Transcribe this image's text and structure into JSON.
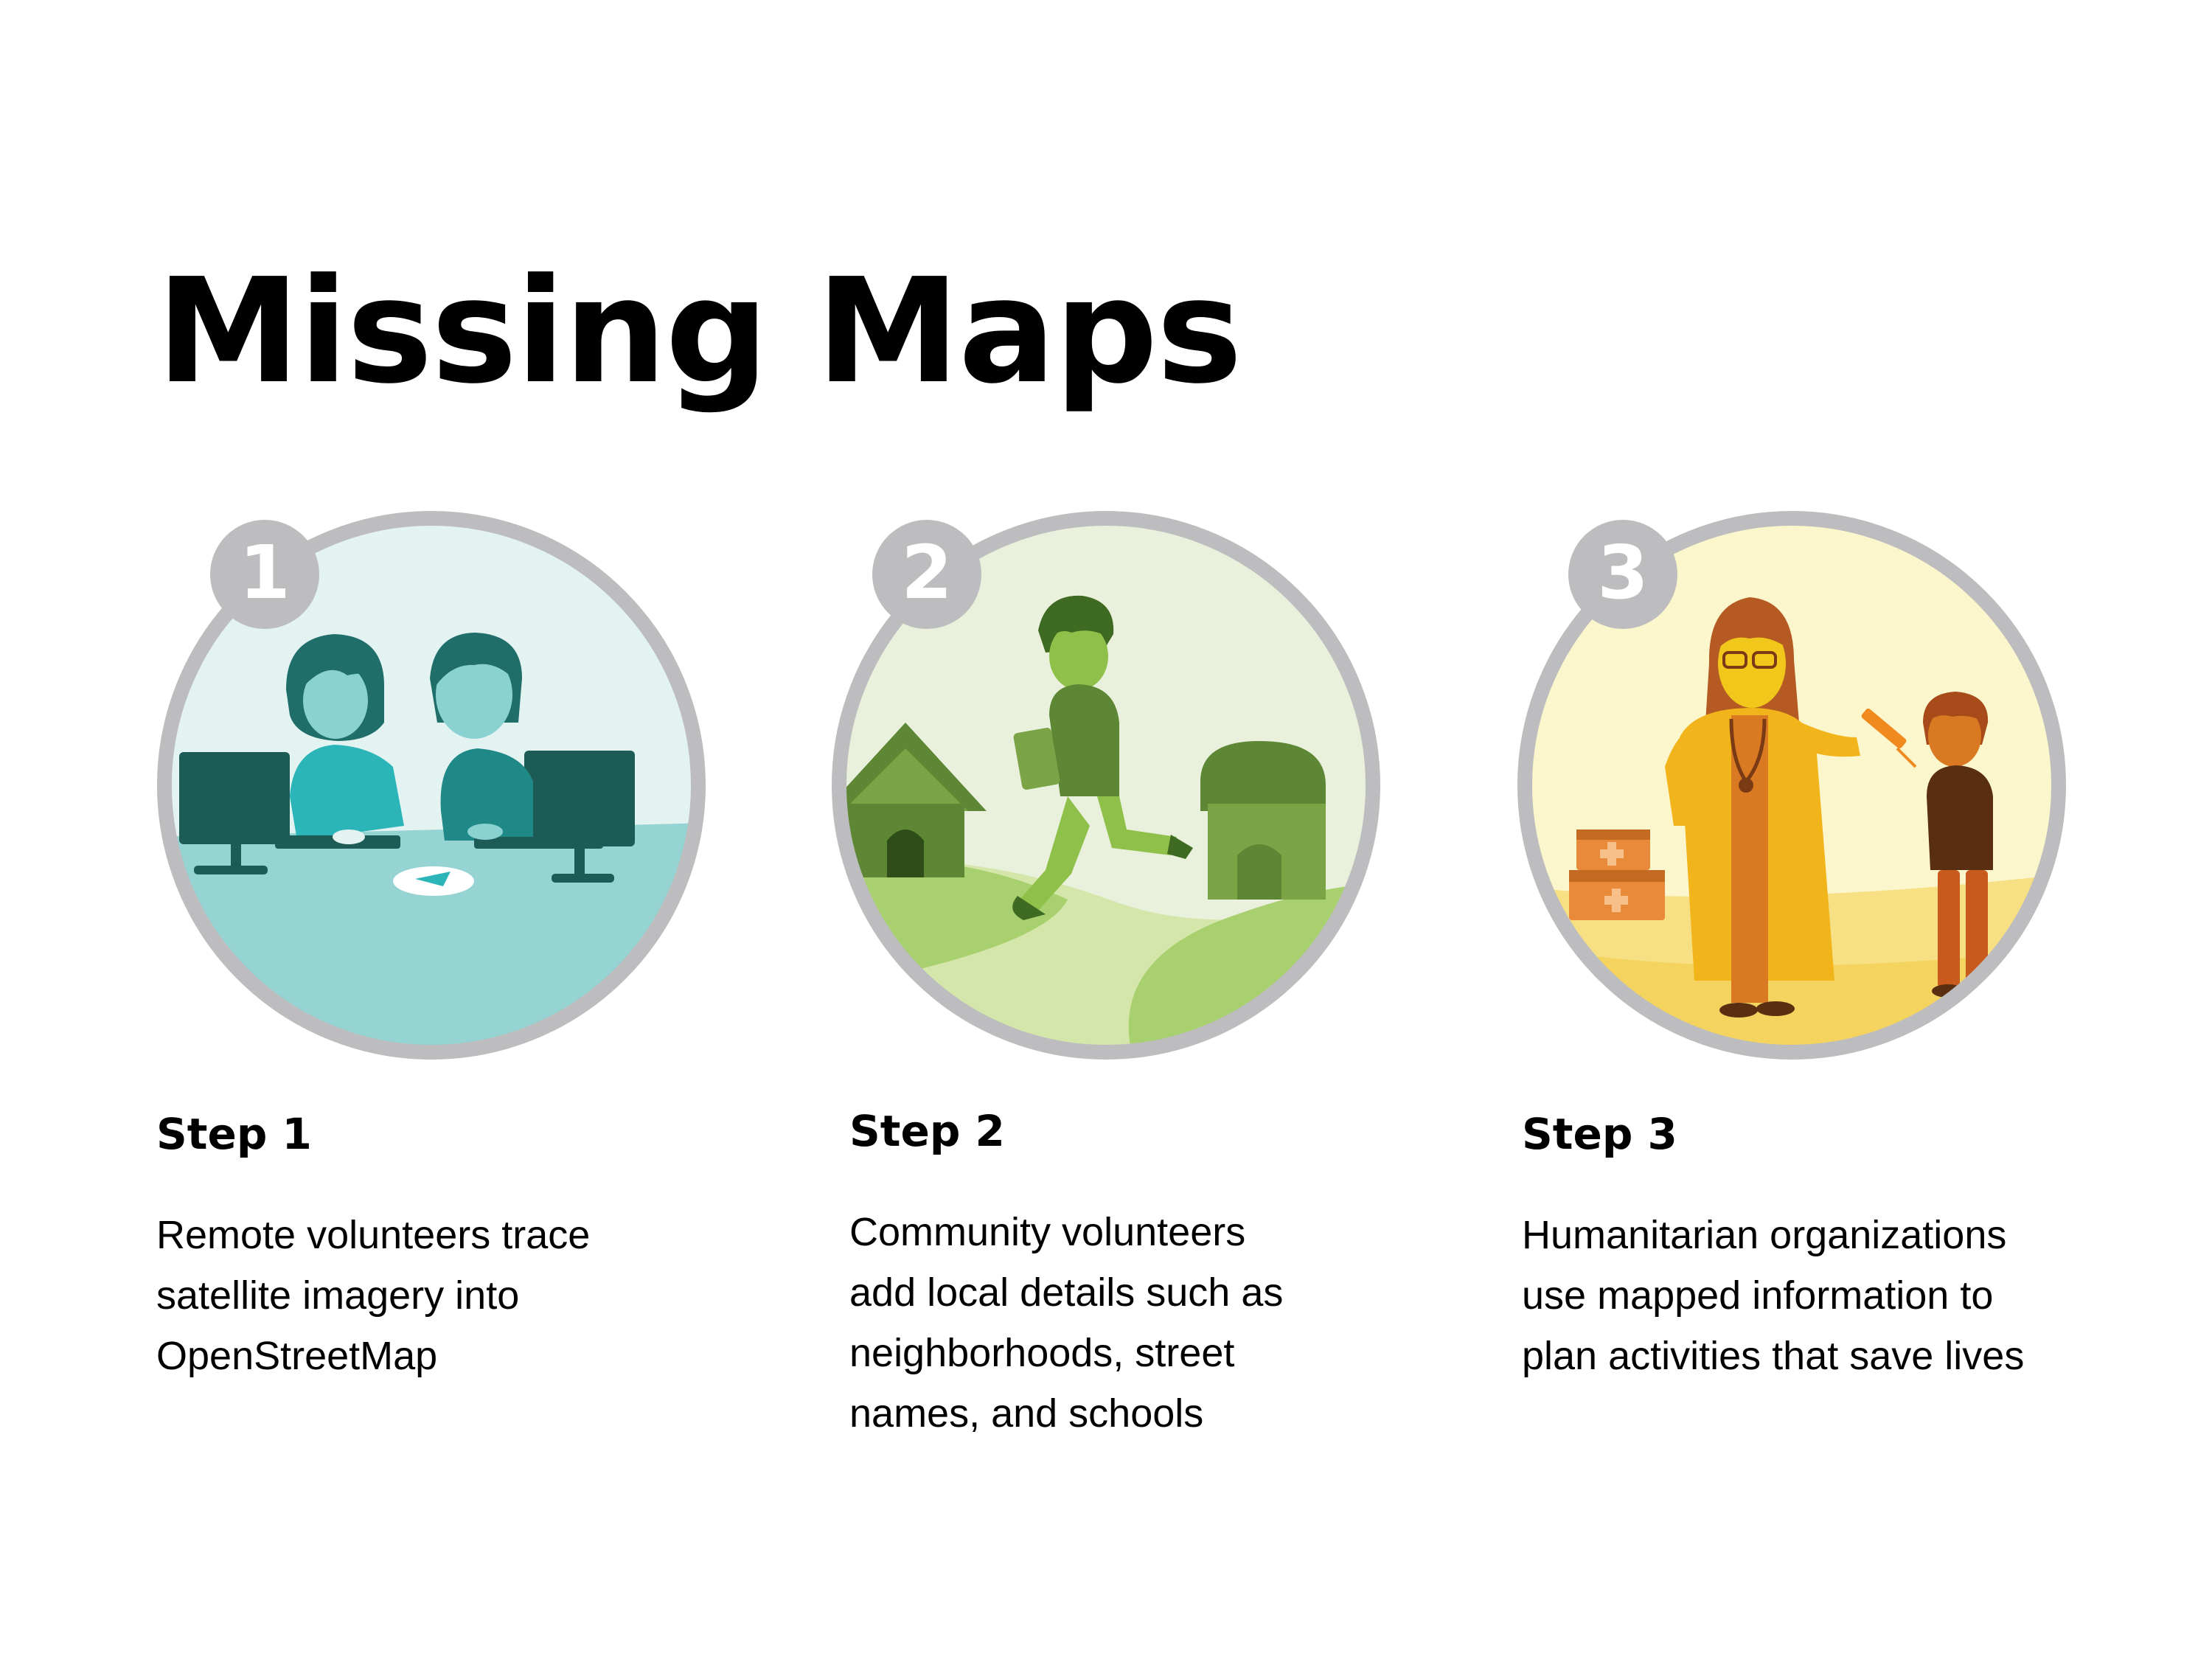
{
  "title": "Missing Maps",
  "colors": {
    "ring": "#bdbdbf",
    "badge_text": "#ffffff",
    "step1_bg": "#e3f3f2",
    "step1_floor": "#95d4d2",
    "step1_dark": "#1d5c56",
    "step2_bg": "#e9f0dc",
    "step2_hill": "#a8d06e",
    "step2_dark": "#5d8735",
    "step3_bg": "#fbf6cc",
    "step3_ground": "#f7df83",
    "step3_orange": "#b55a22"
  },
  "steps": [
    {
      "number": "1",
      "heading": "Step 1",
      "description": "Remote volunteers trace\nsatellite imagery into\nOpenStreetMap",
      "illustration": "remote-volunteers-at-computers"
    },
    {
      "number": "2",
      "heading": "Step 2",
      "description": "Community volunteers\nadd local details such as\nneighborhoods, street\nnames, and schools",
      "illustration": "community-volunteer-walking-with-tablet"
    },
    {
      "number": "3",
      "heading": "Step 3",
      "description": "Humanitarian organizations\nuse mapped information to\nplan activities that save lives",
      "illustration": "doctor-vaccinating-child"
    }
  ]
}
